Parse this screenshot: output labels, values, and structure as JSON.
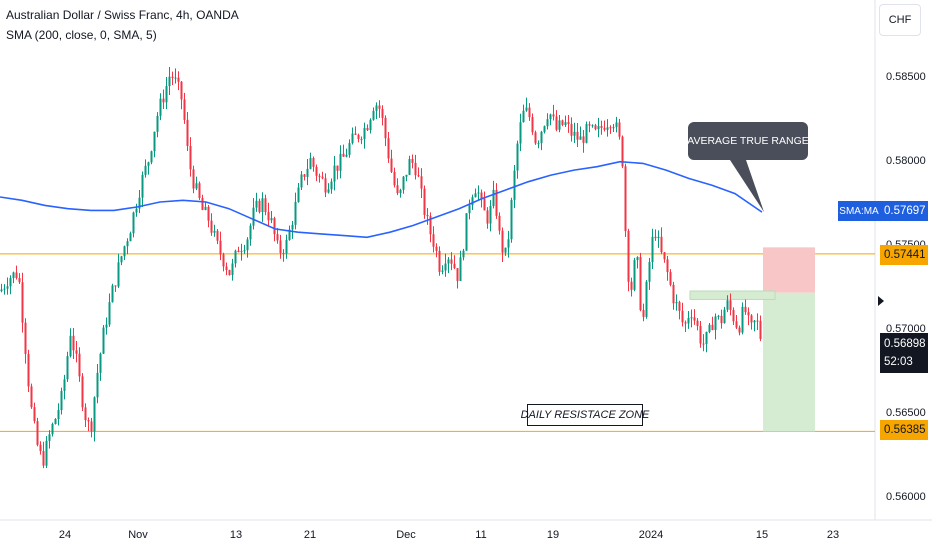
{
  "legend": {
    "symbol": "Australian Dollar / Swiss Franc, 4h, OANDA",
    "indicator": "SMA (200, close, 0, SMA, 5)"
  },
  "currency_button": "CHF",
  "annotations": {
    "callout": "AVERAGE TRUE RANGE",
    "zone_label": "DAILY RESISTACE ZONE"
  },
  "price_scale": {
    "sma_label": "SMA:MA",
    "sma_value": "0.57697",
    "level_upper": "0.57441",
    "level_lower": "0.56385",
    "current_price": "0.56898",
    "countdown": "52:03"
  },
  "colors": {
    "up": "#089981",
    "down": "#f23645",
    "sma": "#2962ff",
    "level": "#f7a600",
    "risk": "#f8c6c6",
    "reward": "#d6ecd2"
  },
  "chart_data": {
    "type": "candlestick",
    "title": "Australian Dollar / Swiss Franc, 4h, OANDA",
    "x_ticks": [
      "24",
      "Nov",
      "13",
      "21",
      "Dec",
      "11",
      "19",
      "2024",
      "15",
      "23"
    ],
    "y_ticks": [
      "0.58500",
      "0.58000",
      "0.57500",
      "0.57000",
      "0.56500",
      "0.56000"
    ],
    "ylim": [
      0.5595,
      0.5875
    ],
    "grid": false,
    "horizontal_levels": [
      0.57441,
      0.56385
    ],
    "current_price": 0.56898,
    "sma_200": {
      "name": "SMA (200, close, 0, SMA, 5)",
      "points": [
        [
          "0",
          0.5778
        ],
        [
          "22",
          0.5776
        ],
        [
          "45",
          0.5773
        ],
        [
          "68",
          0.5771
        ],
        [
          "91",
          0.577
        ],
        [
          "114",
          0.577
        ],
        [
          "137",
          0.5772
        ],
        [
          "160",
          0.5775
        ],
        [
          "183",
          0.5776
        ],
        [
          "206",
          0.5775
        ],
        [
          "229",
          0.5771
        ],
        [
          "252",
          0.5765
        ],
        [
          "275",
          0.5759
        ],
        [
          "298",
          0.5757
        ],
        [
          "321",
          0.5756
        ],
        [
          "344",
          0.5755
        ],
        [
          "367",
          0.5754
        ],
        [
          "390",
          0.5757
        ],
        [
          "413",
          0.5761
        ],
        [
          "436",
          0.5766
        ],
        [
          "459",
          0.5771
        ],
        [
          "482",
          0.5777
        ],
        [
          "505",
          0.5782
        ],
        [
          "528",
          0.5787
        ],
        [
          "551",
          0.5791
        ],
        [
          "574",
          0.5794
        ],
        [
          "597",
          0.5796
        ],
        [
          "620",
          0.5799
        ],
        [
          "643",
          0.5798
        ],
        [
          "666",
          0.5794
        ],
        [
          "689",
          0.5789
        ],
        [
          "712",
          0.5785
        ],
        [
          "735",
          0.578
        ],
        [
          "762",
          0.5769
        ]
      ]
    },
    "price_path": [
      [
        0,
        0.5722
      ],
      [
        8,
        0.573
      ],
      [
        18,
        0.5733
      ],
      [
        24,
        0.5695
      ],
      [
        30,
        0.5655
      ],
      [
        36,
        0.5632
      ],
      [
        42,
        0.562
      ],
      [
        50,
        0.5638
      ],
      [
        56,
        0.5648
      ],
      [
        62,
        0.566
      ],
      [
        70,
        0.5698
      ],
      [
        76,
        0.568
      ],
      [
        84,
        0.565
      ],
      [
        90,
        0.5638
      ],
      [
        96,
        0.567
      ],
      [
        104,
        0.57
      ],
      [
        112,
        0.5722
      ],
      [
        122,
        0.5745
      ],
      [
        130,
        0.576
      ],
      [
        140,
        0.5785
      ],
      [
        148,
        0.58
      ],
      [
        156,
        0.5825
      ],
      [
        164,
        0.584
      ],
      [
        170,
        0.5852
      ],
      [
        176,
        0.5845
      ],
      [
        182,
        0.5835
      ],
      [
        188,
        0.58
      ],
      [
        194,
        0.5785
      ],
      [
        202,
        0.577
      ],
      [
        208,
        0.5765
      ],
      [
        216,
        0.575
      ],
      [
        222,
        0.5742
      ],
      [
        230,
        0.5732
      ],
      [
        238,
        0.5748
      ],
      [
        246,
        0.5752
      ],
      [
        254,
        0.577
      ],
      [
        262,
        0.5775
      ],
      [
        270,
        0.5765
      ],
      [
        278,
        0.5745
      ],
      [
        286,
        0.575
      ],
      [
        294,
        0.577
      ],
      [
        302,
        0.579
      ],
      [
        310,
        0.58
      ],
      [
        318,
        0.579
      ],
      [
        326,
        0.5785
      ],
      [
        334,
        0.5795
      ],
      [
        342,
        0.58
      ],
      [
        350,
        0.581
      ],
      [
        358,
        0.5815
      ],
      [
        366,
        0.582
      ],
      [
        374,
        0.5835
      ],
      [
        380,
        0.583
      ],
      [
        386,
        0.581
      ],
      [
        392,
        0.579
      ],
      [
        398,
        0.5775
      ],
      [
        404,
        0.579
      ],
      [
        410,
        0.58
      ],
      [
        416,
        0.5795
      ],
      [
        422,
        0.5775
      ],
      [
        428,
        0.576
      ],
      [
        434,
        0.575
      ],
      [
        440,
        0.5735
      ],
      [
        446,
        0.5745
      ],
      [
        452,
        0.574
      ],
      [
        458,
        0.573
      ],
      [
        464,
        0.5755
      ],
      [
        470,
        0.578
      ],
      [
        476,
        0.5785
      ],
      [
        482,
        0.577
      ],
      [
        488,
        0.5765
      ],
      [
        494,
        0.578
      ],
      [
        500,
        0.575
      ],
      [
        506,
        0.5742
      ],
      [
        512,
        0.578
      ],
      [
        518,
        0.5815
      ],
      [
        524,
        0.583
      ],
      [
        530,
        0.5825
      ],
      [
        536,
        0.581
      ],
      [
        542,
        0.582
      ],
      [
        548,
        0.583
      ],
      [
        556,
        0.5818
      ],
      [
        564,
        0.5822
      ],
      [
        572,
        0.5815
      ],
      [
        580,
        0.5812
      ],
      [
        588,
        0.5818
      ],
      [
        596,
        0.5815
      ],
      [
        604,
        0.5822
      ],
      [
        612,
        0.5825
      ],
      [
        618,
        0.5815
      ],
      [
        622,
        0.58
      ],
      [
        626,
        0.5745
      ],
      [
        630,
        0.572
      ],
      [
        636,
        0.5745
      ],
      [
        642,
        0.57
      ],
      [
        648,
        0.5735
      ],
      [
        654,
        0.576
      ],
      [
        660,
        0.5745
      ],
      [
        666,
        0.5735
      ],
      [
        672,
        0.572
      ],
      [
        678,
        0.571
      ],
      [
        684,
        0.57
      ],
      [
        690,
        0.5712
      ],
      [
        696,
        0.5702
      ],
      [
        702,
        0.569
      ],
      [
        708,
        0.5695
      ],
      [
        714,
        0.5708
      ],
      [
        720,
        0.5703
      ],
      [
        726,
        0.5715
      ],
      [
        732,
        0.5708
      ],
      [
        738,
        0.57
      ],
      [
        744,
        0.5712
      ],
      [
        750,
        0.5698
      ],
      [
        756,
        0.5705
      ],
      [
        762,
        0.569
      ]
    ],
    "position_tool": {
      "entry": 0.5721,
      "stop": 0.5748,
      "target": 0.56385,
      "x_start": 763,
      "x_end": 815
    },
    "consolidation_box": {
      "top": 0.5722,
      "bottom": 0.5717,
      "x_start": 690,
      "x_end": 775
    }
  }
}
